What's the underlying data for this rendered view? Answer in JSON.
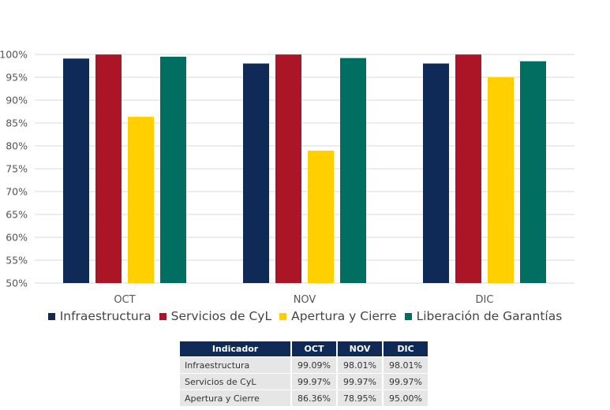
{
  "chart_data": {
    "type": "bar",
    "categories": [
      "OCT",
      "NOV",
      "DIC"
    ],
    "series": [
      {
        "name": "Infraestructura",
        "color": "#0f2a56",
        "values": [
          99.09,
          98.01,
          98.01
        ]
      },
      {
        "name": "Servicios de CyL",
        "color": "#ab1526",
        "values": [
          99.97,
          99.97,
          99.97
        ]
      },
      {
        "name": "Apertura y Cierre",
        "color": "#ffcf00",
        "values": [
          86.36,
          78.95,
          95.0
        ]
      },
      {
        "name": "Liberación de Garantías",
        "color": "#006f62",
        "values": [
          99.5,
          99.2,
          98.5
        ]
      }
    ],
    "ylim": [
      50,
      100
    ],
    "yticks": [
      "50%",
      "55%",
      "60%",
      "65%",
      "70%",
      "75%",
      "80%",
      "85%",
      "90%",
      "95%",
      "100%"
    ],
    "grid": true,
    "legend_position": "bottom"
  },
  "table": {
    "headers": [
      "Indicador",
      "OCT",
      "NOV",
      "DIC"
    ],
    "rows": [
      [
        "Infraestructura",
        "99.09%",
        "98.01%",
        "98.01%"
      ],
      [
        "Servicios de CyL",
        "99.97%",
        "99.97%",
        "99.97%"
      ],
      [
        "Apertura y Cierre",
        "86.36%",
        "78.95%",
        "95.00%"
      ]
    ]
  }
}
